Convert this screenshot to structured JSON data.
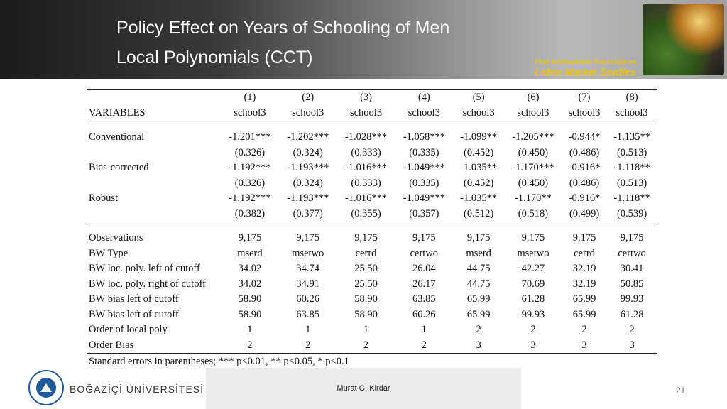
{
  "slide": {
    "title_line1": "Policy Effect on Years of Schooling of Men",
    "title_line2": "Local Polynomials (CCT)",
    "workshop_line1": "First International Workshop on",
    "workshop_line2": "Labor Market Studies",
    "presenter": "Murat G. Kirdar",
    "page_number": "21",
    "university": "BOĞAZİÇİ ÜNİVERSİTESİ"
  },
  "table": {
    "col_numbers": [
      "(1)",
      "(2)",
      "(3)",
      "(4)",
      "(5)",
      "(6)",
      "(7)",
      "(8)"
    ],
    "variables_label": "VARIABLES",
    "col_vars": [
      "school3",
      "school3",
      "school3",
      "school3",
      "school3",
      "school3",
      "school3",
      "school3"
    ],
    "estimates": [
      {
        "label": "Conventional",
        "coef": [
          "-1.201***",
          "-1.202***",
          "-1.028***",
          "-1.058***",
          "-1.099**",
          "-1.205***",
          "-0.944*",
          "-1.135**"
        ],
        "se": [
          "(0.326)",
          "(0.324)",
          "(0.333)",
          "(0.335)",
          "(0.452)",
          "(0.450)",
          "(0.486)",
          "(0.513)"
        ]
      },
      {
        "label": "Bias-corrected",
        "coef": [
          "-1.192***",
          "-1.193***",
          "-1.016***",
          "-1.049***",
          "-1.035**",
          "-1.170***",
          "-0.916*",
          "-1.118**"
        ],
        "se": [
          "(0.326)",
          "(0.324)",
          "(0.333)",
          "(0.335)",
          "(0.452)",
          "(0.450)",
          "(0.486)",
          "(0.513)"
        ]
      },
      {
        "label": "Robust",
        "coef": [
          "-1.192***",
          "-1.193***",
          "-1.016***",
          "-1.049***",
          "-1.035**",
          "-1.170**",
          "-0.916*",
          "-1.118**"
        ],
        "se": [
          "(0.382)",
          "(0.377)",
          "(0.355)",
          "(0.357)",
          "(0.512)",
          "(0.518)",
          "(0.499)",
          "(0.539)"
        ]
      }
    ],
    "stats": [
      {
        "label": "Observations",
        "values": [
          "9,175",
          "9,175",
          "9,175",
          "9,175",
          "9,175",
          "9,175",
          "9,175",
          "9,175"
        ]
      },
      {
        "label": "BW Type",
        "values": [
          "mserd",
          "msetwo",
          "cerrd",
          "certwo",
          "mserd",
          "msetwo",
          "cerrd",
          "certwo"
        ]
      },
      {
        "label": "BW loc. poly. left of cutoff",
        "values": [
          "34.02",
          "34.74",
          "25.50",
          "26.04",
          "44.75",
          "42.27",
          "32.19",
          "30.41"
        ]
      },
      {
        "label": "BW loc. poly. right of cutoff",
        "values": [
          "34.02",
          "34.91",
          "25.50",
          "26.17",
          "44.75",
          "70.69",
          "32.19",
          "50.85"
        ]
      },
      {
        "label": "BW bias left of cutoff",
        "values": [
          "58.90",
          "60.26",
          "58.90",
          "63.85",
          "65.99",
          "61.28",
          "65.99",
          "99.93"
        ]
      },
      {
        "label": "BW bias left of cutoff",
        "values": [
          "58.90",
          "63.85",
          "58.90",
          "60.26",
          "65.99",
          "99.93",
          "65.99",
          "61.28"
        ]
      },
      {
        "label": "Order of local poly.",
        "values": [
          "1",
          "1",
          "1",
          "1",
          "2",
          "2",
          "2",
          "2"
        ]
      },
      {
        "label": "Order Bias",
        "values": [
          "2",
          "2",
          "2",
          "2",
          "3",
          "3",
          "3",
          "3"
        ]
      }
    ],
    "notes": "Standard errors in parentheses; *** p<0.01, ** p<0.05, * p<0.1"
  }
}
